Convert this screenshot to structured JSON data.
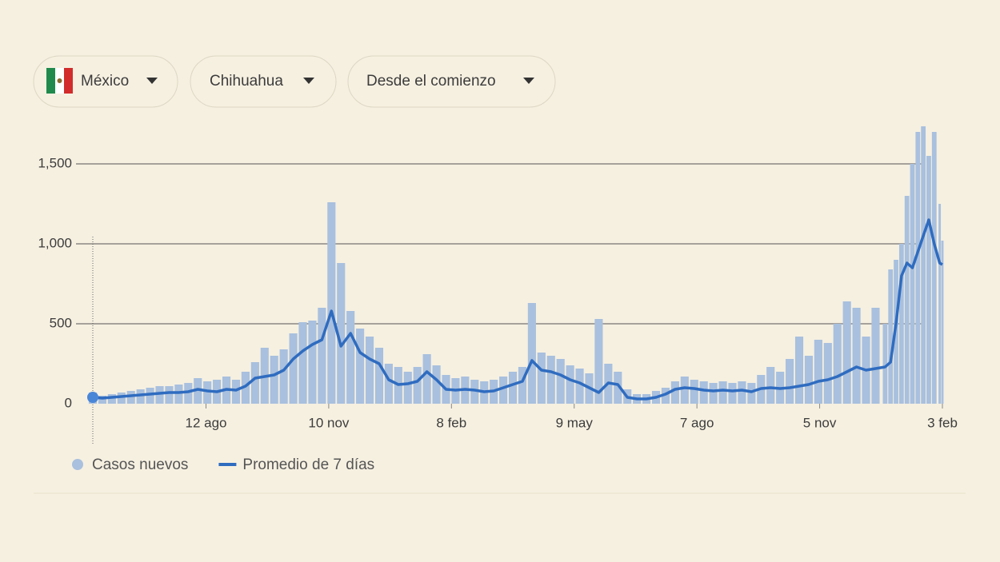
{
  "filters": [
    "México",
    "Chihuahua",
    "Desde el comienzo"
  ],
  "chart_data": {
    "type": "bar",
    "x": [
      0,
      7,
      14,
      21,
      28,
      35,
      42,
      49,
      56,
      63,
      70,
      77,
      84,
      91,
      98,
      105,
      112,
      119,
      126,
      133,
      140,
      147,
      154,
      161,
      168,
      175,
      182,
      189,
      196,
      203,
      210,
      217,
      224,
      231,
      238,
      245,
      252,
      259,
      266,
      273,
      280,
      287,
      294,
      301,
      308,
      315,
      322,
      329,
      336,
      343,
      350,
      357,
      364,
      371,
      378,
      385,
      392,
      399,
      406,
      413,
      420,
      427,
      434,
      441,
      448,
      455,
      462,
      469,
      476,
      483,
      490,
      497,
      504,
      511,
      518,
      525,
      532,
      539,
      546,
      553,
      560,
      567,
      574,
      581,
      585,
      589,
      593,
      597,
      601,
      605,
      609,
      613,
      617,
      621,
      623
    ],
    "series": [
      {
        "name": "Casos nuevos",
        "color": "#a9c0de",
        "type": "bar",
        "values": [
          70,
          50,
          60,
          70,
          80,
          90,
          100,
          110,
          110,
          120,
          130,
          160,
          140,
          150,
          170,
          150,
          200,
          260,
          350,
          300,
          340,
          440,
          510,
          520,
          600,
          1260,
          880,
          580,
          470,
          420,
          350,
          250,
          230,
          200,
          230,
          310,
          240,
          180,
          160,
          170,
          150,
          140,
          150,
          170,
          200,
          230,
          630,
          320,
          300,
          280,
          240,
          220,
          190,
          530,
          250,
          200,
          90,
          60,
          60,
          80,
          100,
          140,
          170,
          150,
          140,
          130,
          140,
          130,
          140,
          130,
          180,
          230,
          200,
          280,
          420,
          300,
          400,
          380,
          500,
          640,
          600,
          420,
          600,
          500,
          840,
          900,
          1000,
          1300,
          1500,
          1700,
          1735,
          1550,
          1700,
          1250,
          1020
        ]
      },
      {
        "name": "Promedio de 7 días",
        "color": "#2f6cc0",
        "type": "line",
        "values": [
          40,
          35,
          40,
          45,
          50,
          55,
          60,
          65,
          70,
          70,
          75,
          90,
          80,
          75,
          90,
          85,
          110,
          160,
          170,
          180,
          210,
          280,
          330,
          370,
          400,
          580,
          360,
          440,
          320,
          280,
          250,
          150,
          120,
          125,
          140,
          200,
          150,
          90,
          85,
          90,
          85,
          75,
          80,
          100,
          120,
          140,
          270,
          210,
          200,
          180,
          150,
          130,
          100,
          70,
          130,
          120,
          40,
          30,
          30,
          40,
          60,
          90,
          100,
          95,
          85,
          80,
          85,
          80,
          85,
          75,
          95,
          100,
          95,
          100,
          110,
          120,
          140,
          150,
          170,
          200,
          230,
          210,
          220,
          230,
          260,
          500,
          800,
          880,
          850,
          950,
          1050,
          1150,
          1000,
          880,
          870
        ]
      }
    ],
    "xlim": [
      0,
      623
    ],
    "xticks": [
      {
        "value": 83,
        "label": "12 ago"
      },
      {
        "value": 173,
        "label": "10 nov"
      },
      {
        "value": 263,
        "label": "8 feb"
      },
      {
        "value": 353,
        "label": "9 may"
      },
      {
        "value": 443,
        "label": "7 ago"
      },
      {
        "value": 533,
        "label": "5 nov"
      },
      {
        "value": 623,
        "label": "3 feb"
      }
    ],
    "ylim": [
      0,
      1735
    ],
    "yticks": [
      0,
      500,
      {
        "value": 1000,
        "label": "1,000"
      },
      {
        "value": 1500,
        "label": "1,500"
      }
    ],
    "grid": true
  }
}
